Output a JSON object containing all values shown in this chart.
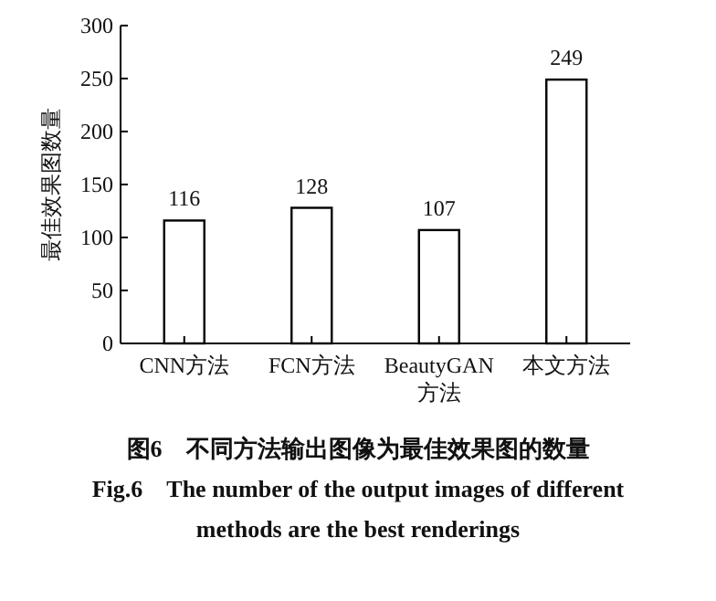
{
  "chart_data": {
    "type": "bar",
    "ylabel": "最佳效果图数量",
    "categories": [
      "CNN方法",
      "FCN方法",
      "BeautyGAN方法",
      "本文方法"
    ],
    "values": [
      116,
      128,
      107,
      249
    ],
    "color": "#ffffff",
    "ylim": [
      0,
      300
    ],
    "yticks": [
      0,
      50,
      100,
      150,
      200,
      250,
      300
    ],
    "data_labels": true,
    "annotations": [
      "图6　不同方法输出图像为最佳效果图的数量",
      "Fig.6　The number of the output images of different methods are the best renderings"
    ]
  }
}
